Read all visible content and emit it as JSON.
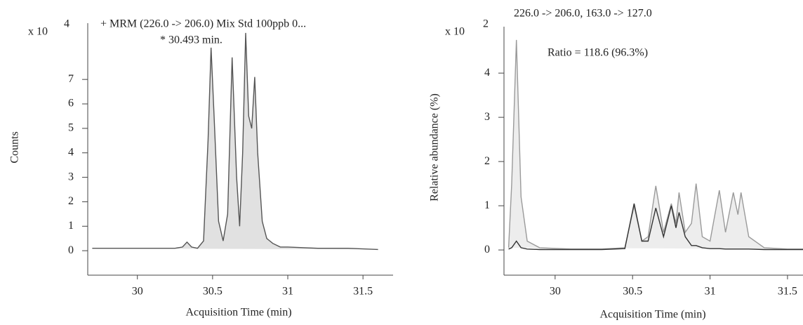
{
  "chart_data": [
    {
      "type": "line",
      "title": "+ MRM (226.0 -> 206.0) Mix Std 100ppb 0...",
      "annotation": "* 30.493 min.",
      "xlabel": "Acquisition Time (min)",
      "ylabel": "Counts",
      "y_multiplier": "x 10",
      "y_exponent": "4",
      "x": [
        29.7,
        29.9,
        30.1,
        30.25,
        30.3,
        30.33,
        30.36,
        30.4,
        30.44,
        30.47,
        30.49,
        30.51,
        30.54,
        30.57,
        30.6,
        30.63,
        30.66,
        30.68,
        30.7,
        30.72,
        30.74,
        30.76,
        30.78,
        30.8,
        30.83,
        30.86,
        30.9,
        30.95,
        31.0,
        31.2,
        31.4,
        31.6
      ],
      "series": [
        {
          "color": "#555555",
          "fill": "#d9d9d9",
          "values": [
            0.1,
            0.1,
            0.1,
            0.1,
            0.15,
            0.35,
            0.15,
            0.1,
            0.4,
            4.5,
            8.3,
            5.5,
            1.2,
            0.4,
            1.5,
            7.9,
            3.0,
            1.0,
            4.0,
            8.9,
            5.5,
            5.0,
            7.1,
            4.0,
            1.2,
            0.5,
            0.3,
            0.15,
            0.15,
            0.1,
            0.1,
            0.05
          ]
        }
      ],
      "xlim": [
        29.67,
        31.7
      ],
      "xticks": [
        30,
        30.5,
        31,
        31.5
      ],
      "ylim": [
        -1,
        9.3
      ],
      "yticks": [
        0,
        1,
        2,
        3,
        4,
        5,
        6,
        7
      ],
      "grid": false
    },
    {
      "type": "line",
      "title": "226.0 -> 206.0, 163.0 -> 127.0",
      "annotation": "Ratio = 118.6 (96.3%)",
      "xlabel": "Acquisition Time (min)",
      "ylabel": "Relative abundance (%)",
      "y_multiplier": "x 10",
      "y_exponent": "2",
      "x": [
        29.7,
        29.72,
        29.75,
        29.78,
        29.82,
        29.9,
        30.1,
        30.3,
        30.45,
        30.51,
        30.56,
        30.6,
        30.65,
        30.7,
        30.75,
        30.78,
        30.8,
        30.84,
        30.88,
        30.91,
        30.95,
        31.0,
        31.06,
        31.1,
        31.15,
        31.18,
        31.2,
        31.25,
        31.35,
        31.5,
        31.6
      ],
      "series": [
        {
          "color": "#9a9a9a",
          "fill": "#e8e8e8",
          "values": [
            0.05,
            1.5,
            4.75,
            1.2,
            0.2,
            0.05,
            0.02,
            0.02,
            0.05,
            1.0,
            0.2,
            0.3,
            1.45,
            0.4,
            1.05,
            0.6,
            1.3,
            0.4,
            0.6,
            1.5,
            0.3,
            0.2,
            1.35,
            0.4,
            1.3,
            0.8,
            1.3,
            0.3,
            0.05,
            0.02,
            0.02
          ]
        },
        {
          "color": "#333333",
          "fill": "none",
          "values": [
            0.02,
            0.05,
            0.2,
            0.05,
            0.02,
            0.01,
            0.01,
            0.01,
            0.03,
            1.05,
            0.2,
            0.2,
            0.95,
            0.3,
            1.0,
            0.5,
            0.85,
            0.3,
            0.1,
            0.1,
            0.05,
            0.03,
            0.03,
            0.02,
            0.02,
            0.02,
            0.02,
            0.02,
            0.01,
            0.01,
            0.01
          ]
        }
      ],
      "xlim": [
        29.67,
        31.6
      ],
      "xticks": [
        30,
        30.5,
        31,
        31.5
      ],
      "ylim": [
        -0.57,
        5.05
      ],
      "yticks": [
        0,
        1,
        2,
        3,
        4
      ],
      "grid": false
    }
  ]
}
